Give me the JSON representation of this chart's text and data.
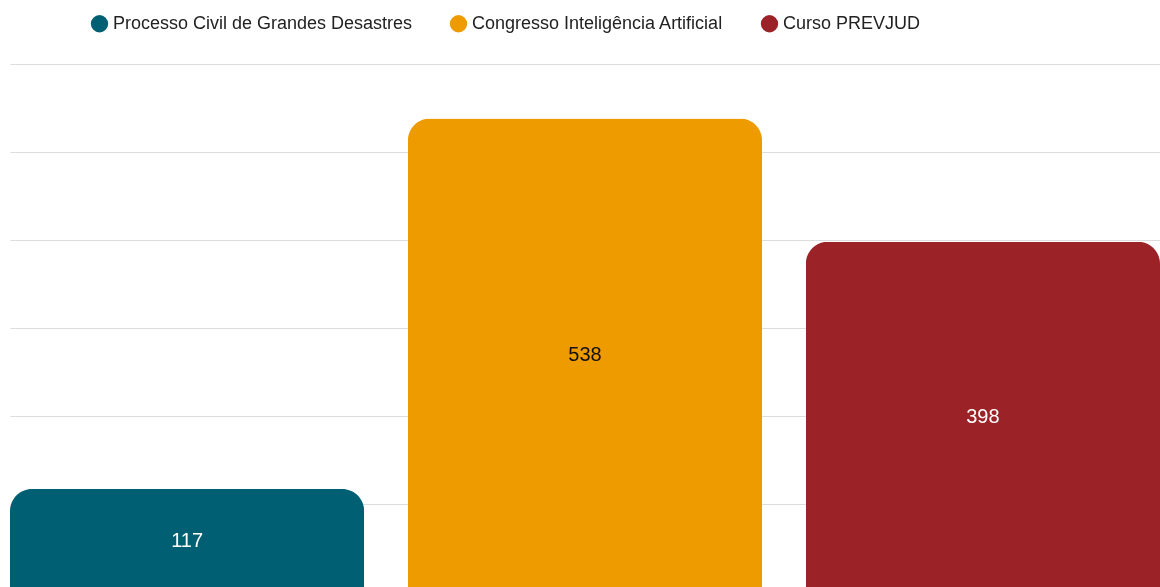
{
  "chart_data": {
    "type": "bar",
    "categories": [
      null
    ],
    "series": [
      {
        "name": "Processo Civil de Grandes Desastres",
        "color": "#005f73",
        "values": [
          117
        ]
      },
      {
        "name": "Congresso Inteligência Artificial",
        "color": "#ee9b00",
        "values": [
          538
        ]
      },
      {
        "name": "Curso PREVJUD",
        "color": "#9b2226",
        "values": [
          398
        ]
      }
    ],
    "ylim": [
      0,
      600
    ],
    "yticks": [
      {
        "value": 100,
        "label": null
      },
      {
        "value": 200,
        "label": null
      },
      {
        "value": 300,
        "label": null
      },
      {
        "value": 400,
        "label": null
      },
      {
        "value": 500,
        "label": null
      },
      {
        "value": 600,
        "label": null
      }
    ],
    "grid": "y",
    "legend": "top",
    "data_labels": true
  }
}
